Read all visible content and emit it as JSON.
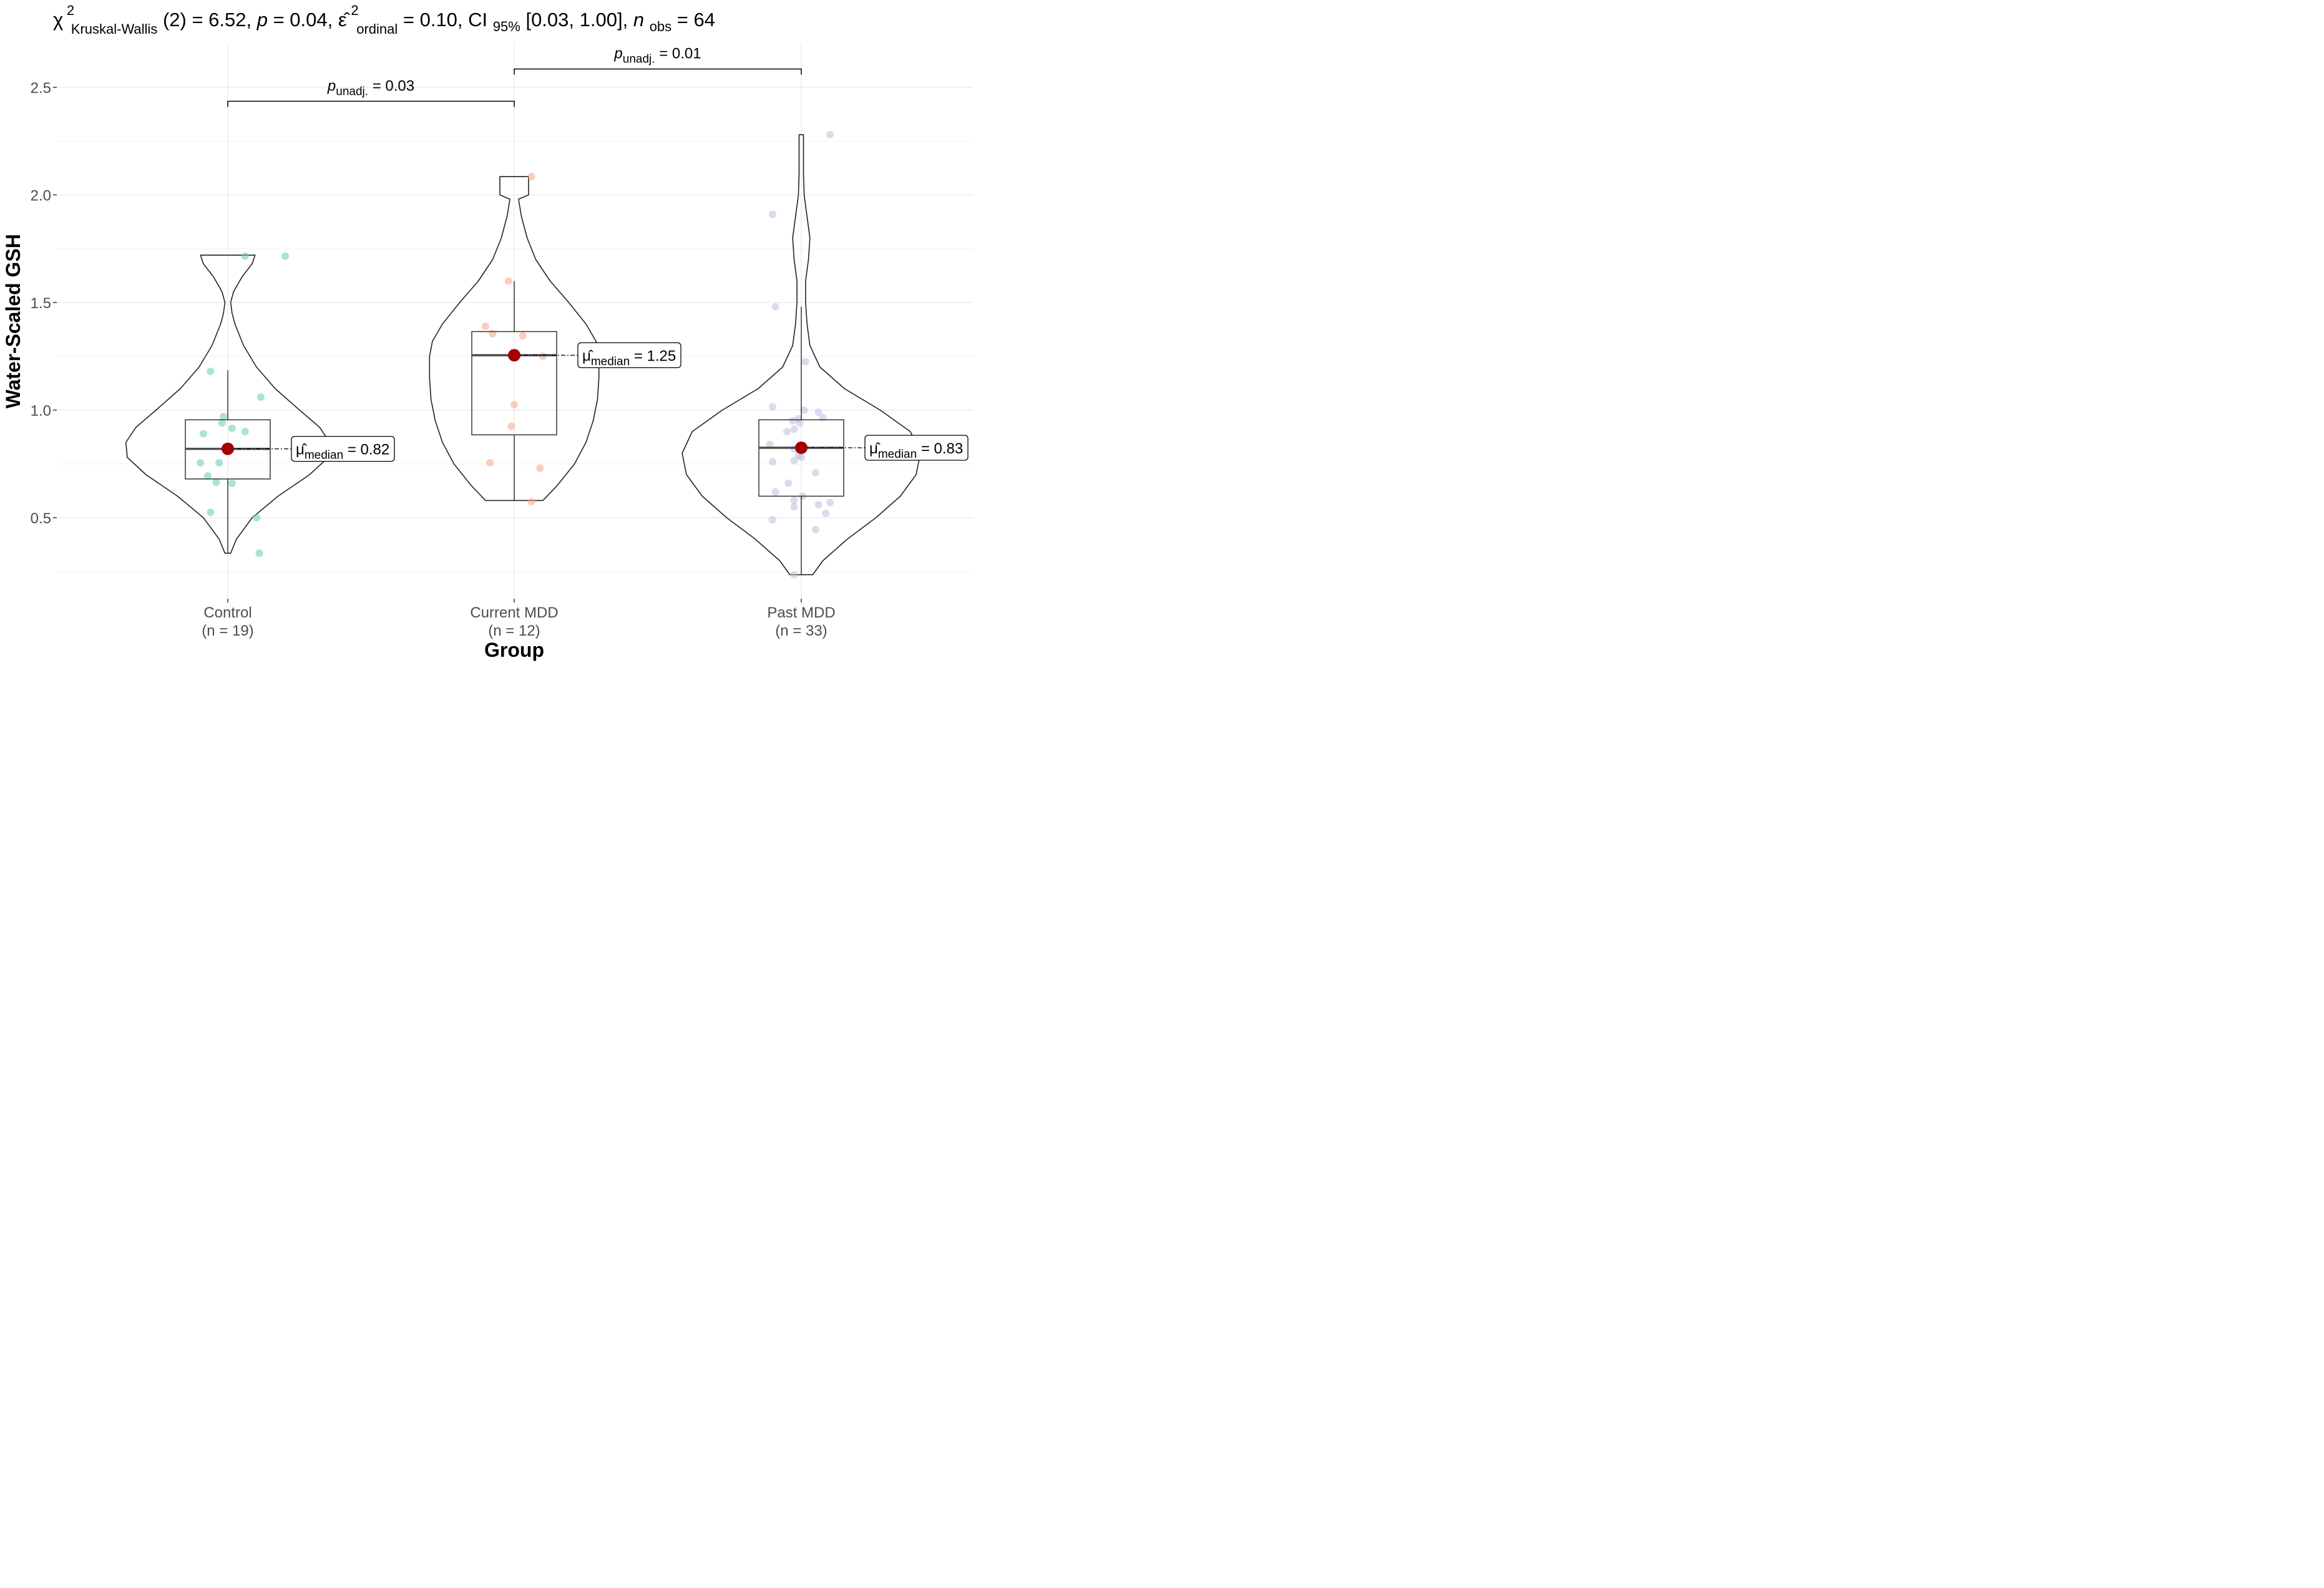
{
  "chart_data": {
    "type": "violin-box",
    "title": {
      "chi_symbol": "χ",
      "chi_sup": "2",
      "chi_sub": "Kruskal-Wallis",
      "df_text": "(2) = 6.52, ",
      "p_symbol": "p",
      "p_text": " = 0.04, ",
      "eps_symbol": "ε̂",
      "eps_sup": "2",
      "eps_sub": "ordinal",
      "eps_text": " = 0.10, CI",
      "ci_sub": "95%",
      "ci_text": " [0.03, 1.00], ",
      "n_symbol": "n",
      "n_sub": "obs",
      "n_text": " = 64"
    },
    "xlabel": "Group",
    "ylabel": "Water-Scaled GSH",
    "ylim": [
      0.12,
      2.62
    ],
    "yticks": [
      0.5,
      1.0,
      1.5,
      2.0,
      2.5
    ],
    "ytick_labels": [
      "0.5",
      "1.0",
      "1.5",
      "2.0",
      "2.5"
    ],
    "groups": [
      {
        "name": "Control",
        "n_label": "(n = 19)",
        "color": "#66cdaa",
        "min": 0.335,
        "q1": 0.68,
        "median": 0.82,
        "q3": 0.955,
        "whisker_max": 1.185,
        "max": 1.72,
        "median_label": {
          "mu": "μ̂",
          "sub": "median",
          "text": " = 0.82"
        },
        "violin": [
          [
            0.335,
            0.02
          ],
          [
            0.4,
            0.06
          ],
          [
            0.5,
            0.17
          ],
          [
            0.6,
            0.35
          ],
          [
            0.7,
            0.57
          ],
          [
            0.78,
            0.7
          ],
          [
            0.85,
            0.71
          ],
          [
            0.92,
            0.64
          ],
          [
            1.0,
            0.5
          ],
          [
            1.1,
            0.33
          ],
          [
            1.2,
            0.2
          ],
          [
            1.3,
            0.11
          ],
          [
            1.4,
            0.05
          ],
          [
            1.45,
            0.03
          ],
          [
            1.5,
            0.02
          ],
          [
            1.55,
            0.04
          ],
          [
            1.62,
            0.1
          ],
          [
            1.68,
            0.17
          ],
          [
            1.72,
            0.19
          ]
        ],
        "points": [
          [
            0.12,
            1.715
          ],
          [
            0.4,
            1.715
          ],
          [
            -0.12,
            1.18
          ],
          [
            0.23,
            1.06
          ],
          [
            -0.03,
            0.97
          ],
          [
            -0.04,
            0.94
          ],
          [
            0.03,
            0.915
          ],
          [
            0.12,
            0.9
          ],
          [
            -0.17,
            0.89
          ],
          [
            -0.19,
            0.755
          ],
          [
            -0.06,
            0.755
          ],
          [
            -0.14,
            0.695
          ],
          [
            -0.08,
            0.665
          ],
          [
            0.03,
            0.66
          ],
          [
            -0.12,
            0.525
          ],
          [
            0.2,
            0.5
          ],
          [
            0.22,
            0.335
          ]
        ]
      },
      {
        "name": "Current MDD",
        "n_label": "(n = 12)",
        "color": "#f4a582",
        "min": 0.58,
        "q1": 0.885,
        "median": 1.255,
        "q3": 1.365,
        "whisker_max": 1.6,
        "max": 2.085,
        "median_label": {
          "mu": "μ̂",
          "sub": "median",
          "text": " = 1.25"
        },
        "violin": [
          [
            0.58,
            0.2
          ],
          [
            0.65,
            0.3
          ],
          [
            0.75,
            0.42
          ],
          [
            0.85,
            0.5
          ],
          [
            0.95,
            0.55
          ],
          [
            1.05,
            0.58
          ],
          [
            1.15,
            0.59
          ],
          [
            1.25,
            0.59
          ],
          [
            1.32,
            0.57
          ],
          [
            1.4,
            0.5
          ],
          [
            1.5,
            0.38
          ],
          [
            1.6,
            0.25
          ],
          [
            1.7,
            0.15
          ],
          [
            1.8,
            0.09
          ],
          [
            1.9,
            0.05
          ],
          [
            1.98,
            0.03
          ],
          [
            2.0,
            0.1
          ],
          [
            2.085,
            0.1
          ]
        ],
        "points": [
          [
            0.12,
            2.085
          ],
          [
            -0.04,
            1.6
          ],
          [
            -0.2,
            1.39
          ],
          [
            -0.15,
            1.355
          ],
          [
            0.06,
            1.345
          ],
          [
            0.2,
            1.25
          ],
          [
            0.0,
            1.025
          ],
          [
            -0.02,
            0.925
          ],
          [
            -0.17,
            0.755
          ],
          [
            0.18,
            0.73
          ],
          [
            0.12,
            0.575
          ]
        ]
      },
      {
        "name": "Past MDD",
        "n_label": "(n = 33)",
        "color": "#bcbddc",
        "min": 0.235,
        "q1": 0.6,
        "median": 0.825,
        "q3": 0.955,
        "whisker_max": 1.48,
        "max": 2.28,
        "median_label": {
          "mu": "μ̂",
          "sub": "median",
          "text": " = 0.83"
        },
        "violin": [
          [
            0.235,
            0.08
          ],
          [
            0.3,
            0.15
          ],
          [
            0.4,
            0.32
          ],
          [
            0.5,
            0.52
          ],
          [
            0.6,
            0.69
          ],
          [
            0.7,
            0.8
          ],
          [
            0.8,
            0.83
          ],
          [
            0.9,
            0.76
          ],
          [
            1.0,
            0.55
          ],
          [
            1.1,
            0.3
          ],
          [
            1.2,
            0.13
          ],
          [
            1.3,
            0.06
          ],
          [
            1.4,
            0.04
          ],
          [
            1.5,
            0.03
          ],
          [
            1.6,
            0.03
          ],
          [
            1.7,
            0.05
          ],
          [
            1.8,
            0.06
          ],
          [
            1.9,
            0.04
          ],
          [
            2.0,
            0.02
          ],
          [
            2.1,
            0.015
          ],
          [
            2.28,
            0.015
          ]
        ],
        "points": [
          [
            0.2,
            2.28
          ],
          [
            -0.2,
            1.91
          ],
          [
            -0.18,
            1.48
          ],
          [
            0.03,
            1.225
          ],
          [
            -0.2,
            1.015
          ],
          [
            0.02,
            1.0
          ],
          [
            0.12,
            0.99
          ],
          [
            -0.02,
            0.96
          ],
          [
            0.15,
            0.965
          ],
          [
            -0.06,
            0.95
          ],
          [
            -0.01,
            0.94
          ],
          [
            -0.05,
            0.91
          ],
          [
            -0.1,
            0.9
          ],
          [
            -0.22,
            0.84
          ],
          [
            -0.05,
            0.82
          ],
          [
            0.0,
            0.78
          ],
          [
            -0.2,
            0.76
          ],
          [
            -0.05,
            0.765
          ],
          [
            -0.02,
            0.79
          ],
          [
            0.1,
            0.71
          ],
          [
            -0.09,
            0.66
          ],
          [
            -0.18,
            0.62
          ],
          [
            0.01,
            0.6
          ],
          [
            -0.05,
            0.58
          ],
          [
            -0.05,
            0.55
          ],
          [
            0.12,
            0.56
          ],
          [
            0.2,
            0.57
          ],
          [
            0.17,
            0.52
          ],
          [
            -0.2,
            0.49
          ],
          [
            0.1,
            0.445
          ],
          [
            -0.05,
            0.235
          ]
        ]
      }
    ],
    "comparisons": [
      {
        "from": 0,
        "to": 1,
        "y": 2.435,
        "p_symbol": "p",
        "p_sub": "unadj.",
        "p_text": " = 0.03"
      },
      {
        "from": 1,
        "to": 2,
        "y": 2.585,
        "p_symbol": "p",
        "p_sub": "unadj.",
        "p_text": " = 0.01"
      }
    ],
    "median_point_color": "#a50000"
  }
}
